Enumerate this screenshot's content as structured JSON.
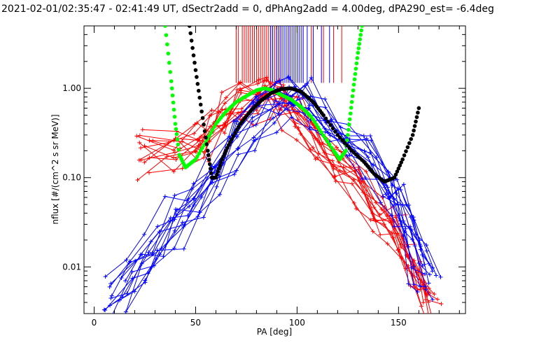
{
  "chart_data": {
    "type": "line",
    "title": "2021-02-01/02:35:47 - 02:41:49 UT, dSectr2add = 0, dPhAng2add = 4.00deg, dPA290_est=  -6.4deg",
    "xlabel": "PA [deg]",
    "ylabel": "nflux [#/(cm^2 s sr MeV)]",
    "xlim": [
      -5,
      183
    ],
    "ylim": [
      0.003,
      5.0
    ],
    "yscale": "log",
    "x_ticks": [
      0,
      50,
      100,
      150
    ],
    "x_tick_labels": [
      "0",
      "50",
      "100",
      "150"
    ],
    "y_ticks": [
      0.01,
      0.1,
      1.0
    ],
    "y_tick_labels": [
      "0.01",
      "0.10",
      "1.00"
    ],
    "grid": false,
    "colors": {
      "red": "#ff0000",
      "blue": "#0000ff",
      "green": "#00ff00",
      "black": "#000000"
    },
    "series": [
      {
        "color": "red",
        "style": "line+plus",
        "description": "scatter of many distributions, peak near 85 deg",
        "peak_x": 85,
        "points": [
          [
            24,
            0.21
          ],
          [
            40,
            0.23
          ],
          [
            52,
            0.3
          ],
          [
            58,
            0.45
          ],
          [
            65,
            0.6
          ],
          [
            72,
            0.75
          ],
          [
            80,
            0.9
          ],
          [
            85,
            1.0
          ],
          [
            92,
            0.85
          ],
          [
            100,
            0.6
          ],
          [
            110,
            0.3
          ],
          [
            120,
            0.15
          ],
          [
            130,
            0.1
          ],
          [
            140,
            0.05
          ],
          [
            148,
            0.03
          ],
          [
            155,
            0.015
          ],
          [
            160,
            0.008
          ],
          [
            165,
            0.005
          ]
        ]
      },
      {
        "color": "blue",
        "style": "line+plus",
        "description": "scatter of many distributions, peak near 97 deg",
        "peak_x": 97,
        "points": [
          [
            10,
            0.005
          ],
          [
            20,
            0.01
          ],
          [
            30,
            0.02
          ],
          [
            40,
            0.04
          ],
          [
            50,
            0.06
          ],
          [
            60,
            0.12
          ],
          [
            70,
            0.3
          ],
          [
            80,
            0.55
          ],
          [
            90,
            0.85
          ],
          [
            97,
            1.0
          ],
          [
            105,
            0.85
          ],
          [
            115,
            0.5
          ],
          [
            125,
            0.3
          ],
          [
            135,
            0.2
          ],
          [
            145,
            0.1
          ],
          [
            150,
            0.06
          ],
          [
            155,
            0.03
          ],
          [
            160,
            0.015
          ],
          [
            165,
            0.008
          ]
        ]
      },
      {
        "color": "green",
        "style": "dots",
        "points": [
          [
            35,
            5.0
          ],
          [
            38,
            1.2
          ],
          [
            40,
            0.4
          ],
          [
            42,
            0.18
          ],
          [
            45,
            0.13
          ],
          [
            50,
            0.16
          ],
          [
            55,
            0.25
          ],
          [
            60,
            0.4
          ],
          [
            65,
            0.55
          ],
          [
            70,
            0.7
          ],
          [
            75,
            0.82
          ],
          [
            80,
            0.95
          ],
          [
            84,
            1.0
          ],
          [
            88,
            0.95
          ],
          [
            92,
            0.85
          ],
          [
            97,
            0.75
          ],
          [
            102,
            0.62
          ],
          [
            107,
            0.48
          ],
          [
            112,
            0.32
          ],
          [
            118,
            0.2
          ],
          [
            121,
            0.16
          ],
          [
            124,
            0.2
          ],
          [
            126,
            0.45
          ],
          [
            128,
            1.1
          ],
          [
            130,
            2.5
          ],
          [
            132,
            5.0
          ]
        ]
      },
      {
        "color": "black",
        "style": "dots",
        "points": [
          [
            47,
            5.0
          ],
          [
            50,
            1.6
          ],
          [
            53,
            0.55
          ],
          [
            56,
            0.2
          ],
          [
            58,
            0.1
          ],
          [
            60,
            0.1
          ],
          [
            63,
            0.16
          ],
          [
            67,
            0.25
          ],
          [
            72,
            0.4
          ],
          [
            77,
            0.55
          ],
          [
            82,
            0.72
          ],
          [
            87,
            0.88
          ],
          [
            92,
            0.98
          ],
          [
            97,
            1.0
          ],
          [
            102,
            0.92
          ],
          [
            108,
            0.7
          ],
          [
            113,
            0.5
          ],
          [
            120,
            0.3
          ],
          [
            127,
            0.2
          ],
          [
            133,
            0.15
          ],
          [
            138,
            0.11
          ],
          [
            143,
            0.09
          ],
          [
            148,
            0.1
          ],
          [
            152,
            0.16
          ],
          [
            157,
            0.3
          ],
          [
            160,
            0.6
          ]
        ]
      }
    ],
    "vertical_markers": {
      "red_x": [
        70,
        71,
        73,
        74,
        75,
        76,
        77,
        78,
        79,
        80,
        81,
        82,
        83,
        84,
        85,
        86,
        87,
        88,
        89,
        90,
        91,
        92,
        94,
        96,
        103,
        107,
        113,
        118,
        122
      ],
      "blue_x": [
        87,
        88,
        90,
        91,
        92,
        93,
        94,
        95,
        96,
        97,
        98,
        99,
        100,
        101,
        102,
        103,
        105,
        108,
        112,
        116
      ],
      "y_from": 1.15,
      "y_to": 5.0
    }
  }
}
